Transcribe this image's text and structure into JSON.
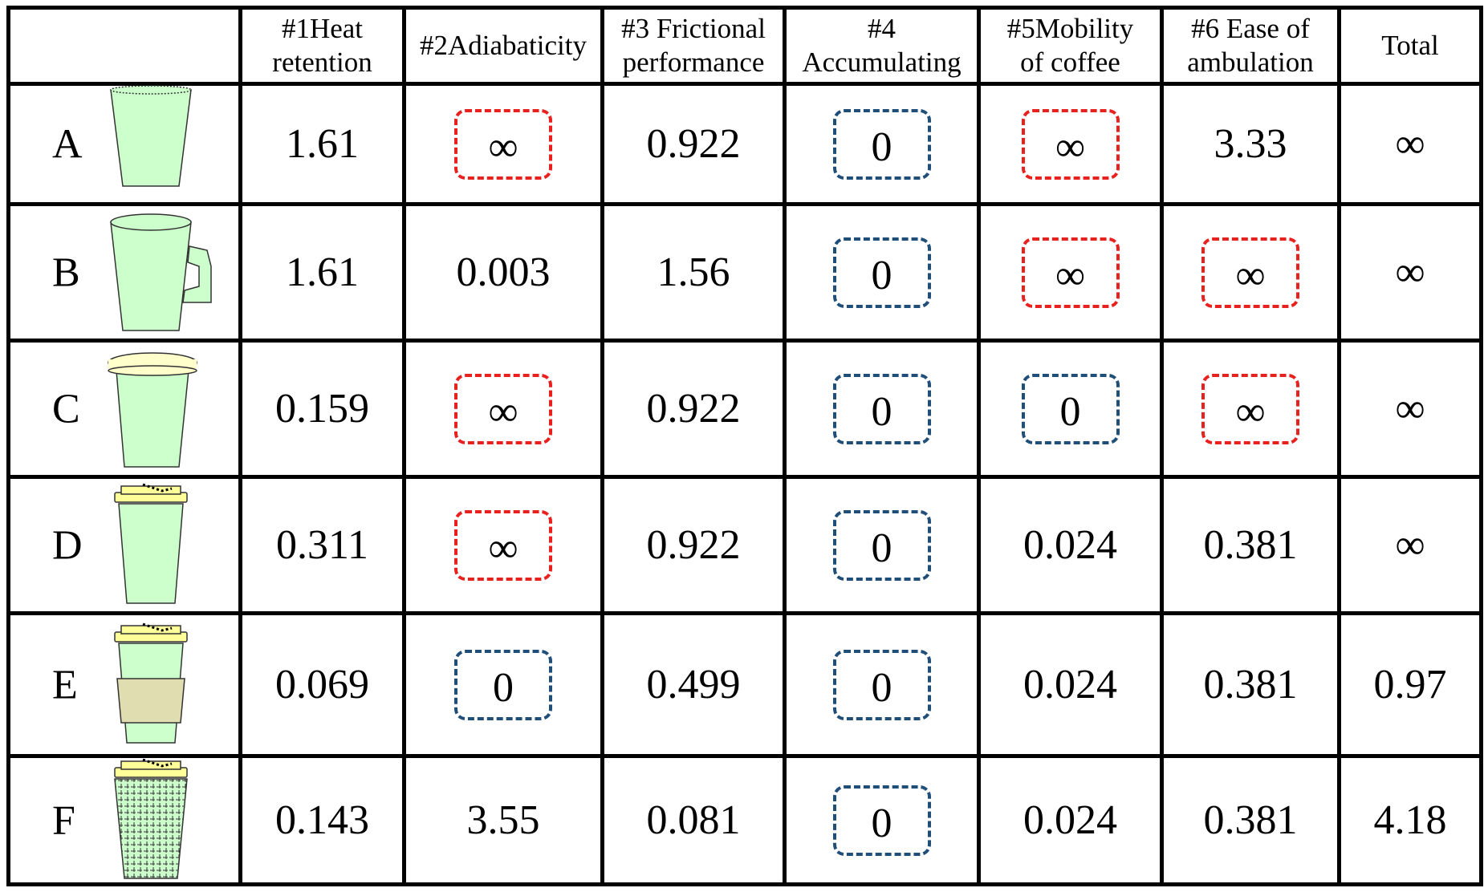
{
  "table": {
    "header": [
      [
        "#1Heat",
        "retention"
      ],
      [
        "#2Adiabaticity"
      ],
      [
        "#3 Frictional",
        "performance"
      ],
      [
        "#4",
        "Accumulating"
      ],
      [
        "#5Mobility",
        "of coffee"
      ],
      [
        "#6 Ease of",
        "ambulation"
      ],
      [
        "Total"
      ]
    ],
    "rows": [
      {
        "label": "A",
        "cells": [
          "1.61",
          "∞",
          "0.922",
          "0",
          "∞",
          "3.33",
          "∞"
        ]
      },
      {
        "label": "B",
        "cells": [
          "1.61",
          "0.003",
          "1.56",
          "0",
          "∞",
          "∞",
          "∞"
        ]
      },
      {
        "label": "C",
        "cells": [
          "0.159",
          "∞",
          "0.922",
          "0",
          "0",
          "∞",
          "∞"
        ]
      },
      {
        "label": "D",
        "cells": [
          "0.311",
          "∞",
          "0.922",
          "0",
          "0.024",
          "0.381",
          "∞"
        ]
      },
      {
        "label": "E",
        "cells": [
          "0.069",
          "0",
          "0.499",
          "0",
          "0.024",
          "0.381",
          "0.97"
        ]
      },
      {
        "label": "F",
        "cells": [
          "0.143",
          "3.55",
          "0.081",
          "0",
          "0.024",
          "0.381",
          "4.18"
        ]
      }
    ]
  }
}
